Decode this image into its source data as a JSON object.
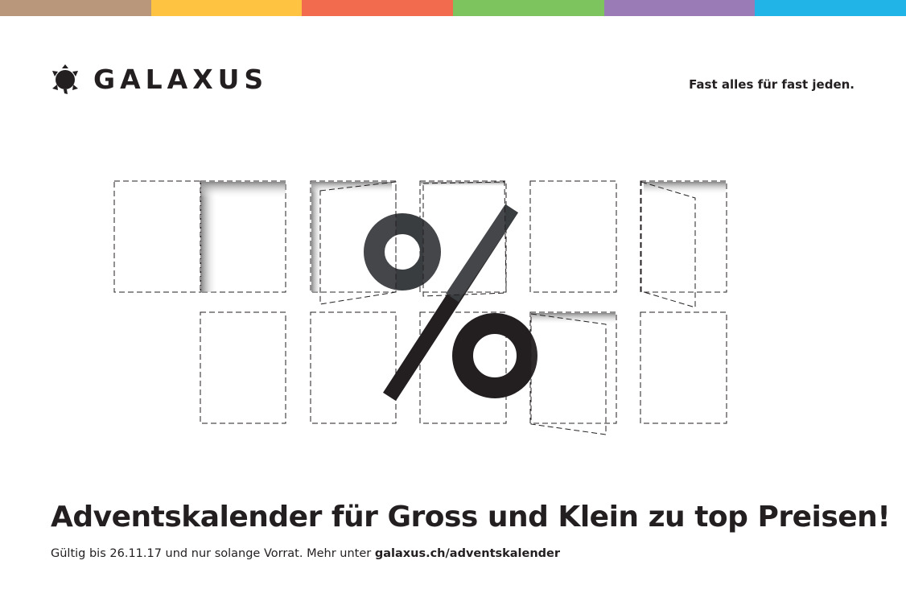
{
  "topbar": {
    "colors": [
      "#b8977a",
      "#fec340",
      "#f36b4f",
      "#7dc45f",
      "#9b7bb6",
      "#21b4e6"
    ]
  },
  "brand": {
    "name": "GALAXUS",
    "icon": "turtle-icon"
  },
  "tagline": "Fast alles für fast jeden.",
  "artwork": {
    "symbol": "%",
    "description_icon": "advent-calendar-doors"
  },
  "headline": "Adventskalender für Gross und Klein zu top Preisen!",
  "subline": {
    "text": "Gültig bis 26.11.17 und nur solange Vorrat. Mehr unter ",
    "link": "galaxus.ch/adventskalender"
  }
}
